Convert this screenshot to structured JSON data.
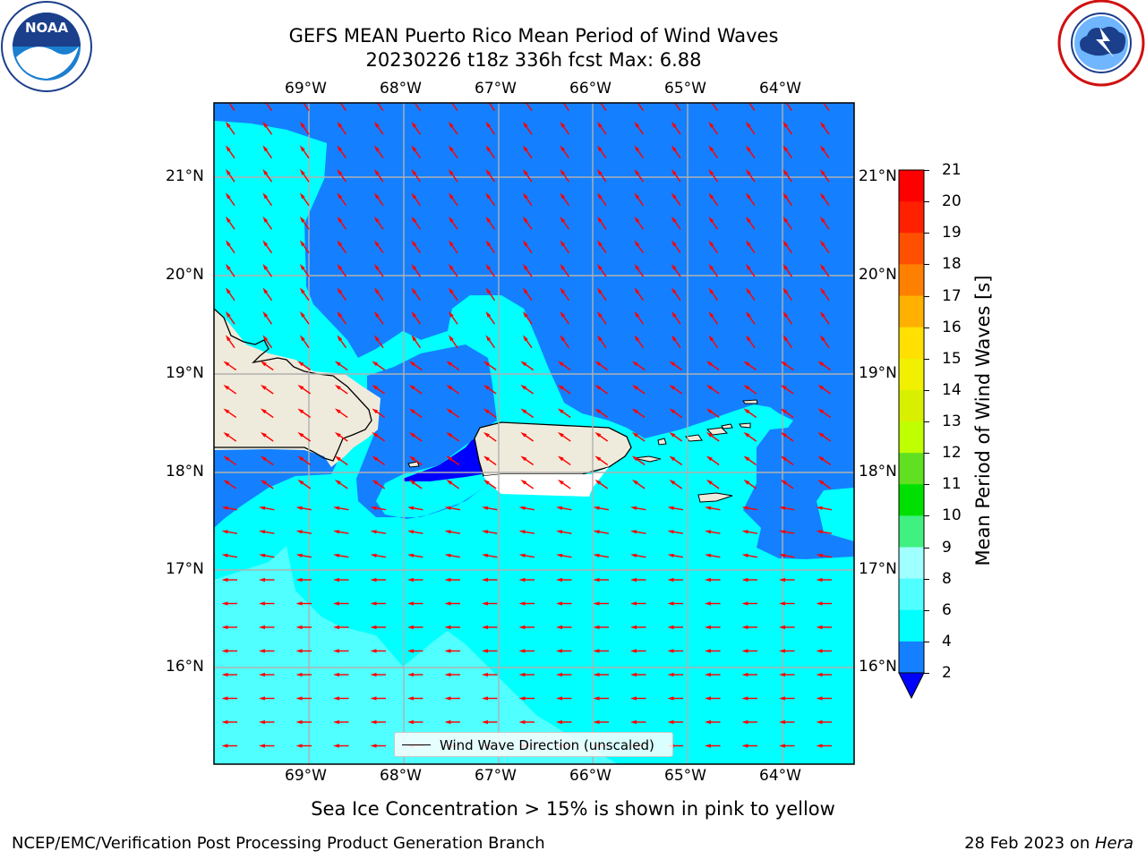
{
  "header": {
    "title_line1": "GEFS MEAN Puerto Rico Mean Period of Wind Waves",
    "title_line2": "20230226 t18z 336h fcst   Max: 6.88"
  },
  "logos": {
    "left": "noaa-logo",
    "left_text": "NOAA",
    "left_ring_text": "NATIONAL OCEANIC AND ATMOSPHERIC ADMINISTRATION · U.S. DEPARTMENT OF COMMERCE",
    "right": "nws-logo",
    "right_ring_text": "NATIONAL WEATHER SERVICE"
  },
  "map": {
    "lon_labels": [
      "69°W",
      "68°W",
      "67°W",
      "66°W",
      "65°W",
      "64°W"
    ],
    "lat_labels": [
      "21°N",
      "20°N",
      "19°N",
      "18°N",
      "17°N",
      "16°N"
    ],
    "legend_label": "Wind Wave Direction (unscaled)",
    "colors": {
      "land": "#efebdc",
      "coast": "#000000",
      "grid": "#b0b0b0",
      "arrow": "#ff0000"
    }
  },
  "colorbar": {
    "label": "Mean Period of Wind Waves [s]",
    "ticks": [
      "21",
      "20",
      "19",
      "18",
      "17",
      "16",
      "15",
      "14",
      "13",
      "12",
      "11",
      "10",
      "9",
      "8",
      "6",
      "4",
      "2"
    ],
    "bins": [
      {
        "range": "20-21",
        "color": "#ff0000"
      },
      {
        "range": "19-20",
        "color": "#ff2000"
      },
      {
        "range": "18-19",
        "color": "#ff5000"
      },
      {
        "range": "17-18",
        "color": "#ff8000"
      },
      {
        "range": "16-17",
        "color": "#ffb000"
      },
      {
        "range": "15-16",
        "color": "#ffe000"
      },
      {
        "range": "14-15",
        "color": "#f0f000"
      },
      {
        "range": "13-14",
        "color": "#d8f000"
      },
      {
        "range": "12-13",
        "color": "#c0ff00"
      },
      {
        "range": "11-12",
        "color": "#60e020"
      },
      {
        "range": "10-11",
        "color": "#00e000"
      },
      {
        "range": "9-10",
        "color": "#40f080"
      },
      {
        "range": "8-9",
        "color": "#a0ffff"
      },
      {
        "range": "6-8",
        "color": "#50ffff"
      },
      {
        "range": "4-6",
        "color": "#00ffff"
      },
      {
        "range": "2-4",
        "color": "#1480ff"
      },
      {
        "range": "<2",
        "color": "#0000ff"
      }
    ]
  },
  "caption": "Sea Ice Concentration > 15% is shown in pink to yellow",
  "footer": {
    "left": "NCEP/EMC/Verification Post Processing Product Generation Branch",
    "right_date": "28 Feb 2023 on ",
    "right_host": "Hera"
  }
}
